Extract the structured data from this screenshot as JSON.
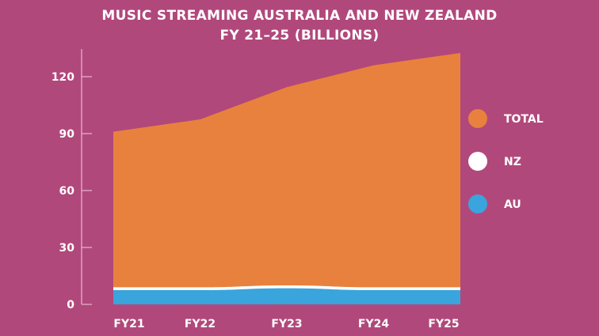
{
  "chart_data": {
    "type": "area",
    "title": "MUSIC STREAMING AUSTRALIA AND NEW ZEALAND",
    "subtitle": "FY 21–25 (BILLIONS)",
    "categories": [
      "FY21",
      "FY22",
      "FY23",
      "FY24",
      "FY25"
    ],
    "yticks": [
      0,
      30,
      60,
      90,
      120
    ],
    "ylim": [
      0,
      135
    ],
    "series": [
      {
        "name": "TOTAL",
        "color": "#e8813d",
        "values": [
          91,
          97.5,
          114.5,
          126,
          132.5
        ]
      },
      {
        "name": "NZ",
        "color": "#ffffff",
        "values": [
          1.5,
          1.5,
          1.5,
          1.5,
          1.5
        ]
      },
      {
        "name": "AU",
        "color": "#3aa4dd",
        "values": [
          7.5,
          7.5,
          8.5,
          7.5,
          7.5
        ]
      }
    ],
    "legend_position": "right",
    "grid": false
  }
}
